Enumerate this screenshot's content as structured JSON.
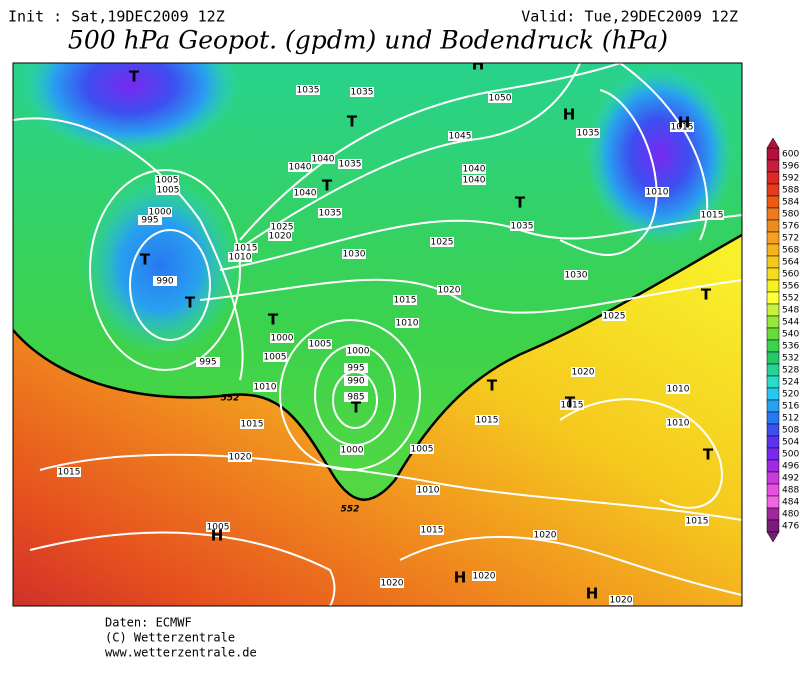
{
  "header": {
    "init": "Init : Sat,19DEC2009 12Z",
    "valid": "Valid: Tue,29DEC2009 12Z",
    "title": "500 hPa Geopot. (gpdm) und Bodendruck (hPa)"
  },
  "map": {
    "isobar_labels": [
      1035,
      1035,
      1050,
      1045,
      1035,
      1015,
      1040,
      1035,
      1040,
      1005,
      1005,
      1040,
      1040,
      1040,
      1010,
      1015,
      1000,
      995,
      1035,
      1025,
      1020,
      1035,
      1025,
      1015,
      1010,
      1030,
      1030,
      990,
      1020,
      1015,
      1010,
      1025,
      1000,
      1005,
      1005,
      995,
      1000,
      995,
      990,
      985,
      1010,
      1020,
      1015,
      1010,
      1010,
      1015,
      1015,
      1000,
      1005,
      1015,
      1020,
      1010,
      1005,
      1015,
      1020,
      1015,
      1020,
      1020,
      1020
    ],
    "centers": [
      "T",
      "T",
      "T",
      "T",
      "T",
      "T",
      "T",
      "T",
      "T",
      "T",
      "T",
      "T",
      "H",
      "H",
      "H",
      "H",
      "H",
      "H"
    ],
    "contour_labels": [
      "552",
      "552"
    ]
  },
  "legend": {
    "values": [
      600,
      596,
      592,
      588,
      584,
      580,
      576,
      572,
      568,
      564,
      560,
      556,
      552,
      548,
      544,
      540,
      536,
      532,
      528,
      524,
      520,
      516,
      512,
      508,
      504,
      500,
      496,
      492,
      488,
      484,
      480,
      476
    ],
    "colors": [
      "#b4103c",
      "#c81e3c",
      "#dc2828",
      "#e63c1e",
      "#ee5a14",
      "#f0781e",
      "#f08c1e",
      "#f5a01e",
      "#f5b41e",
      "#f5c81e",
      "#f5dc1e",
      "#f5f01e",
      "#ffff3c",
      "#c8f03c",
      "#96e63c",
      "#64dc3c",
      "#3cd24b",
      "#28c864",
      "#28d296",
      "#28dcc8",
      "#28c8f0",
      "#28a0f0",
      "#2878f0",
      "#3c50f0",
      "#5a32f0",
      "#7828f0",
      "#a028e6",
      "#c83cdc",
      "#e650dc",
      "#f064e6",
      "#a0289b",
      "#781e78"
    ]
  },
  "footer": {
    "lines": [
      "Daten: ECMWF",
      "(C) Wetterzentrale",
      "www.wetterzentrale.de"
    ]
  }
}
